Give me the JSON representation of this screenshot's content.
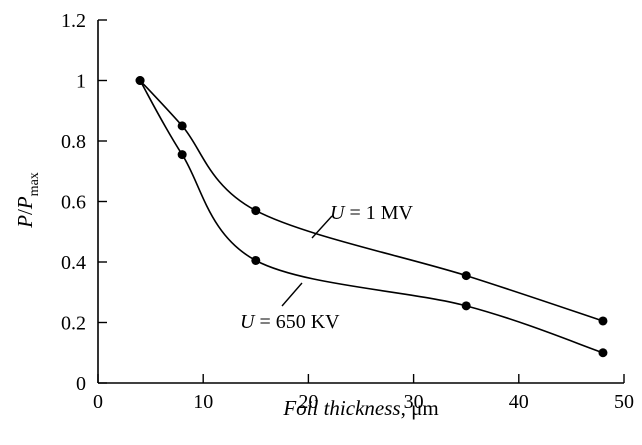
{
  "chart_data": {
    "type": "line",
    "xlabel": {
      "italic": "Foil thickness",
      "rest": ", μm"
    },
    "ylabel": {
      "main": "P",
      "slash": "/",
      "denom": "P",
      "sub": "max"
    },
    "xlim": [
      0,
      50
    ],
    "ylim": [
      0,
      1.2
    ],
    "xticks": [
      "0",
      "10",
      "20",
      "30",
      "40",
      "50"
    ],
    "yticks": [
      "0",
      "0.2",
      "0.4",
      "0.6",
      "0.8",
      "1",
      "1.2"
    ],
    "grid": false,
    "series": [
      {
        "name": "U = 1 MV",
        "label": {
          "var": "U",
          "rest": " = 1 MV"
        },
        "x": [
          4,
          8,
          15,
          35,
          48
        ],
        "y": [
          1.0,
          0.85,
          0.57,
          0.355,
          0.205
        ]
      },
      {
        "name": "U = 650 KV",
        "label": {
          "var": "U",
          "rest": " = 650 KV"
        },
        "x": [
          4,
          8,
          15,
          35,
          48
        ],
        "y": [
          1.0,
          0.755,
          0.405,
          0.255,
          0.1
        ]
      }
    ]
  }
}
